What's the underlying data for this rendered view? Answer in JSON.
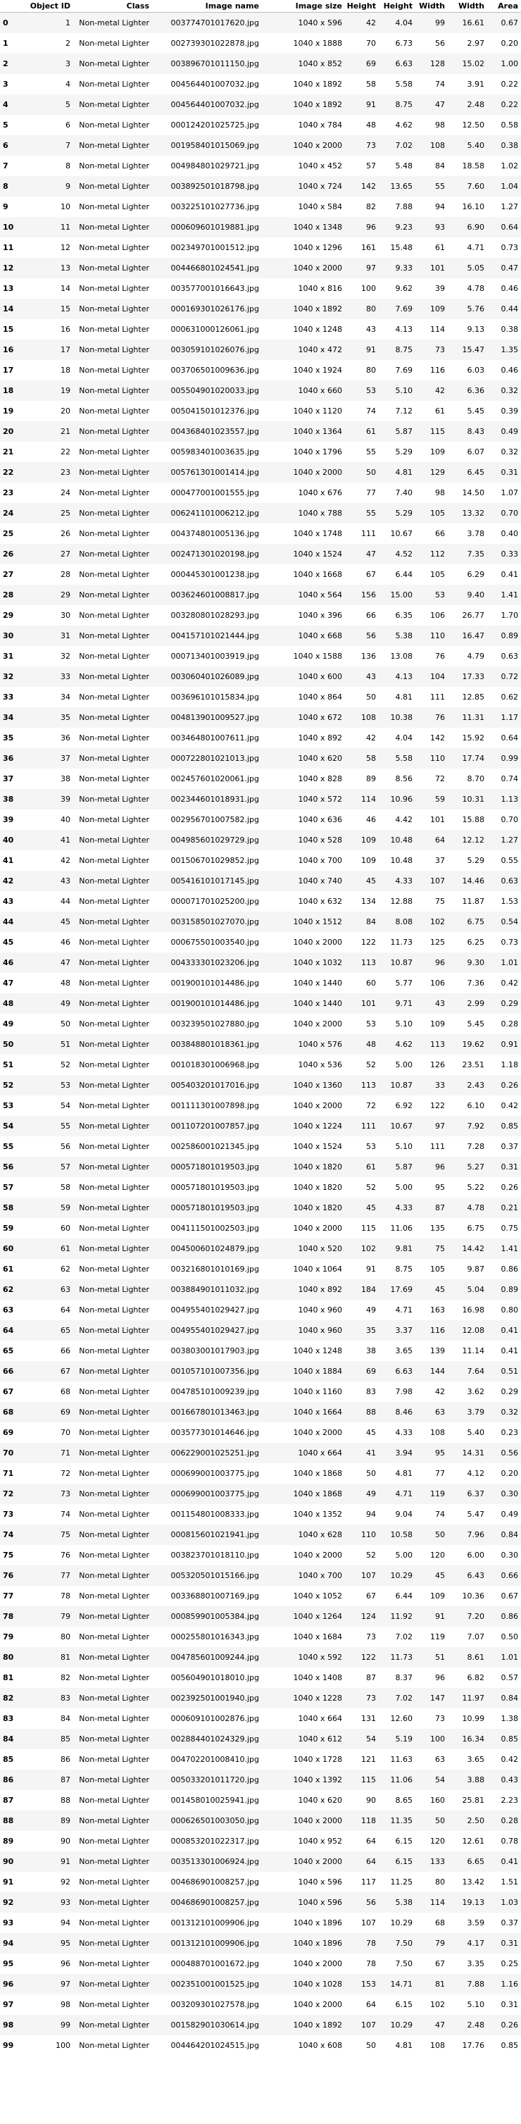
{
  "columns": [
    "Object ID",
    "Class",
    "Image name",
    "Image size",
    "Height",
    "Height",
    "Width",
    "Width",
    "Area"
  ],
  "rows": [
    [
      "0",
      "1",
      "Non-metal Lighter",
      "003774701017620.jpg",
      "1040 x 596",
      "42",
      "4.04",
      "99",
      "16.61",
      "0.67"
    ],
    [
      "1",
      "2",
      "Non-metal Lighter",
      "002739301022878.jpg",
      "1040 x 1888",
      "70",
      "6.73",
      "56",
      "2.97",
      "0.20"
    ],
    [
      "2",
      "3",
      "Non-metal Lighter",
      "003896701011150.jpg",
      "1040 x 852",
      "69",
      "6.63",
      "128",
      "15.02",
      "1.00"
    ],
    [
      "3",
      "4",
      "Non-metal Lighter",
      "004564401007032.jpg",
      "1040 x 1892",
      "58",
      "5.58",
      "74",
      "3.91",
      "0.22"
    ],
    [
      "4",
      "5",
      "Non-metal Lighter",
      "004564401007032.jpg",
      "1040 x 1892",
      "91",
      "8.75",
      "47",
      "2.48",
      "0.22"
    ],
    [
      "5",
      "6",
      "Non-metal Lighter",
      "000124201025725.jpg",
      "1040 x 784",
      "48",
      "4.62",
      "98",
      "12.50",
      "0.58"
    ],
    [
      "6",
      "7",
      "Non-metal Lighter",
      "001958401015069.jpg",
      "1040 x 2000",
      "73",
      "7.02",
      "108",
      "5.40",
      "0.38"
    ],
    [
      "7",
      "8",
      "Non-metal Lighter",
      "004984801029721.jpg",
      "1040 x 452",
      "57",
      "5.48",
      "84",
      "18.58",
      "1.02"
    ],
    [
      "8",
      "9",
      "Non-metal Lighter",
      "003892501018798.jpg",
      "1040 x 724",
      "142",
      "13.65",
      "55",
      "7.60",
      "1.04"
    ],
    [
      "9",
      "10",
      "Non-metal Lighter",
      "003225101027736.jpg",
      "1040 x 584",
      "82",
      "7.88",
      "94",
      "16.10",
      "1.27"
    ],
    [
      "10",
      "11",
      "Non-metal Lighter",
      "000609601019881.jpg",
      "1040 x 1348",
      "96",
      "9.23",
      "93",
      "6.90",
      "0.64"
    ],
    [
      "11",
      "12",
      "Non-metal Lighter",
      "002349701001512.jpg",
      "1040 x 1296",
      "161",
      "15.48",
      "61",
      "4.71",
      "0.73"
    ],
    [
      "12",
      "13",
      "Non-metal Lighter",
      "004466801024541.jpg",
      "1040 x 2000",
      "97",
      "9.33",
      "101",
      "5.05",
      "0.47"
    ],
    [
      "13",
      "14",
      "Non-metal Lighter",
      "003577001016643.jpg",
      "1040 x 816",
      "100",
      "9.62",
      "39",
      "4.78",
      "0.46"
    ],
    [
      "14",
      "15",
      "Non-metal Lighter",
      "000169301026176.jpg",
      "1040 x 1892",
      "80",
      "7.69",
      "109",
      "5.76",
      "0.44"
    ],
    [
      "15",
      "16",
      "Non-metal Lighter",
      "000631000126061.jpg",
      "1040 x 1248",
      "43",
      "4.13",
      "114",
      "9.13",
      "0.38"
    ],
    [
      "16",
      "17",
      "Non-metal Lighter",
      "003059101026076.jpg",
      "1040 x 472",
      "91",
      "8.75",
      "73",
      "15.47",
      "1.35"
    ],
    [
      "17",
      "18",
      "Non-metal Lighter",
      "003706501009636.jpg",
      "1040 x 1924",
      "80",
      "7.69",
      "116",
      "6.03",
      "0.46"
    ],
    [
      "18",
      "19",
      "Non-metal Lighter",
      "005504901020033.jpg",
      "1040 x 660",
      "53",
      "5.10",
      "42",
      "6.36",
      "0.32"
    ],
    [
      "19",
      "20",
      "Non-metal Lighter",
      "005041501012376.jpg",
      "1040 x 1120",
      "74",
      "7.12",
      "61",
      "5.45",
      "0.39"
    ],
    [
      "20",
      "21",
      "Non-metal Lighter",
      "004368401023557.jpg",
      "1040 x 1364",
      "61",
      "5.87",
      "115",
      "8.43",
      "0.49"
    ],
    [
      "21",
      "22",
      "Non-metal Lighter",
      "005983401003635.jpg",
      "1040 x 1796",
      "55",
      "5.29",
      "109",
      "6.07",
      "0.32"
    ],
    [
      "22",
      "23",
      "Non-metal Lighter",
      "005761301001414.jpg",
      "1040 x 2000",
      "50",
      "4.81",
      "129",
      "6.45",
      "0.31"
    ],
    [
      "23",
      "24",
      "Non-metal Lighter",
      "000477001001555.jpg",
      "1040 x 676",
      "77",
      "7.40",
      "98",
      "14.50",
      "1.07"
    ],
    [
      "24",
      "25",
      "Non-metal Lighter",
      "006241101006212.jpg",
      "1040 x 788",
      "55",
      "5.29",
      "105",
      "13.32",
      "0.70"
    ],
    [
      "25",
      "26",
      "Non-metal Lighter",
      "004374801005136.jpg",
      "1040 x 1748",
      "111",
      "10.67",
      "66",
      "3.78",
      "0.40"
    ],
    [
      "26",
      "27",
      "Non-metal Lighter",
      "002471301020198.jpg",
      "1040 x 1524",
      "47",
      "4.52",
      "112",
      "7.35",
      "0.33"
    ],
    [
      "27",
      "28",
      "Non-metal Lighter",
      "000445301001238.jpg",
      "1040 x 1668",
      "67",
      "6.44",
      "105",
      "6.29",
      "0.41"
    ],
    [
      "28",
      "29",
      "Non-metal Lighter",
      "003624601008817.jpg",
      "1040 x 564",
      "156",
      "15.00",
      "53",
      "9.40",
      "1.41"
    ],
    [
      "29",
      "30",
      "Non-metal Lighter",
      "003280801028293.jpg",
      "1040 x 396",
      "66",
      "6.35",
      "106",
      "26.77",
      "1.70"
    ],
    [
      "30",
      "31",
      "Non-metal Lighter",
      "004157101021444.jpg",
      "1040 x 668",
      "56",
      "5.38",
      "110",
      "16.47",
      "0.89"
    ],
    [
      "31",
      "32",
      "Non-metal Lighter",
      "000713401003919.jpg",
      "1040 x 1588",
      "136",
      "13.08",
      "76",
      "4.79",
      "0.63"
    ],
    [
      "32",
      "33",
      "Non-metal Lighter",
      "003060401026089.jpg",
      "1040 x 600",
      "43",
      "4.13",
      "104",
      "17.33",
      "0.72"
    ],
    [
      "33",
      "34",
      "Non-metal Lighter",
      "003696101015834.jpg",
      "1040 x 864",
      "50",
      "4.81",
      "111",
      "12.85",
      "0.62"
    ],
    [
      "34",
      "35",
      "Non-metal Lighter",
      "004813901009527.jpg",
      "1040 x 672",
      "108",
      "10.38",
      "76",
      "11.31",
      "1.17"
    ],
    [
      "35",
      "36",
      "Non-metal Lighter",
      "003464801007611.jpg",
      "1040 x 892",
      "42",
      "4.04",
      "142",
      "15.92",
      "0.64"
    ],
    [
      "36",
      "37",
      "Non-metal Lighter",
      "000722801021013.jpg",
      "1040 x 620",
      "58",
      "5.58",
      "110",
      "17.74",
      "0.99"
    ],
    [
      "37",
      "38",
      "Non-metal Lighter",
      "002457601020061.jpg",
      "1040 x 828",
      "89",
      "8.56",
      "72",
      "8.70",
      "0.74"
    ],
    [
      "38",
      "39",
      "Non-metal Lighter",
      "002344601018931.jpg",
      "1040 x 572",
      "114",
      "10.96",
      "59",
      "10.31",
      "1.13"
    ],
    [
      "39",
      "40",
      "Non-metal Lighter",
      "002956701007582.jpg",
      "1040 x 636",
      "46",
      "4.42",
      "101",
      "15.88",
      "0.70"
    ],
    [
      "40",
      "41",
      "Non-metal Lighter",
      "004985601029729.jpg",
      "1040 x 528",
      "109",
      "10.48",
      "64",
      "12.12",
      "1.27"
    ],
    [
      "41",
      "42",
      "Non-metal Lighter",
      "001506701029852.jpg",
      "1040 x 700",
      "109",
      "10.48",
      "37",
      "5.29",
      "0.55"
    ],
    [
      "42",
      "43",
      "Non-metal Lighter",
      "005416101017145.jpg",
      "1040 x 740",
      "45",
      "4.33",
      "107",
      "14.46",
      "0.63"
    ],
    [
      "43",
      "44",
      "Non-metal Lighter",
      "000071701025200.jpg",
      "1040 x 632",
      "134",
      "12.88",
      "75",
      "11.87",
      "1.53"
    ],
    [
      "44",
      "45",
      "Non-metal Lighter",
      "003158501027070.jpg",
      "1040 x 1512",
      "84",
      "8.08",
      "102",
      "6.75",
      "0.54"
    ],
    [
      "45",
      "46",
      "Non-metal Lighter",
      "000675501003540.jpg",
      "1040 x 2000",
      "122",
      "11.73",
      "125",
      "6.25",
      "0.73"
    ],
    [
      "46",
      "47",
      "Non-metal Lighter",
      "004333301023206.jpg",
      "1040 x 1032",
      "113",
      "10.87",
      "96",
      "9.30",
      "1.01"
    ],
    [
      "47",
      "48",
      "Non-metal Lighter",
      "001900101014486.jpg",
      "1040 x 1440",
      "60",
      "5.77",
      "106",
      "7.36",
      "0.42"
    ],
    [
      "48",
      "49",
      "Non-metal Lighter",
      "001900101014486.jpg",
      "1040 x 1440",
      "101",
      "9.71",
      "43",
      "2.99",
      "0.29"
    ],
    [
      "49",
      "50",
      "Non-metal Lighter",
      "003239501027880.jpg",
      "1040 x 2000",
      "53",
      "5.10",
      "109",
      "5.45",
      "0.28"
    ],
    [
      "50",
      "51",
      "Non-metal Lighter",
      "003848801018361.jpg",
      "1040 x 576",
      "48",
      "4.62",
      "113",
      "19.62",
      "0.91"
    ],
    [
      "51",
      "52",
      "Non-metal Lighter",
      "001018301006968.jpg",
      "1040 x 536",
      "52",
      "5.00",
      "126",
      "23.51",
      "1.18"
    ],
    [
      "52",
      "53",
      "Non-metal Lighter",
      "005403201017016.jpg",
      "1040 x 1360",
      "113",
      "10.87",
      "33",
      "2.43",
      "0.26"
    ],
    [
      "53",
      "54",
      "Non-metal Lighter",
      "001111301007898.jpg",
      "1040 x 2000",
      "72",
      "6.92",
      "122",
      "6.10",
      "0.42"
    ],
    [
      "54",
      "55",
      "Non-metal Lighter",
      "001107201007857.jpg",
      "1040 x 1224",
      "111",
      "10.67",
      "97",
      "7.92",
      "0.85"
    ],
    [
      "55",
      "56",
      "Non-metal Lighter",
      "002586001021345.jpg",
      "1040 x 1524",
      "53",
      "5.10",
      "111",
      "7.28",
      "0.37"
    ],
    [
      "56",
      "57",
      "Non-metal Lighter",
      "000571801019503.jpg",
      "1040 x 1820",
      "61",
      "5.87",
      "96",
      "5.27",
      "0.31"
    ],
    [
      "57",
      "58",
      "Non-metal Lighter",
      "000571801019503.jpg",
      "1040 x 1820",
      "52",
      "5.00",
      "95",
      "5.22",
      "0.26"
    ],
    [
      "58",
      "59",
      "Non-metal Lighter",
      "000571801019503.jpg",
      "1040 x 1820",
      "45",
      "4.33",
      "87",
      "4.78",
      "0.21"
    ],
    [
      "59",
      "60",
      "Non-metal Lighter",
      "004111501002503.jpg",
      "1040 x 2000",
      "115",
      "11.06",
      "135",
      "6.75",
      "0.75"
    ],
    [
      "60",
      "61",
      "Non-metal Lighter",
      "004500601024879.jpg",
      "1040 x 520",
      "102",
      "9.81",
      "75",
      "14.42",
      "1.41"
    ],
    [
      "61",
      "62",
      "Non-metal Lighter",
      "003216801010169.jpg",
      "1040 x 1064",
      "91",
      "8.75",
      "105",
      "9.87",
      "0.86"
    ],
    [
      "62",
      "63",
      "Non-metal Lighter",
      "003884901011032.jpg",
      "1040 x 892",
      "184",
      "17.69",
      "45",
      "5.04",
      "0.89"
    ],
    [
      "63",
      "64",
      "Non-metal Lighter",
      "004955401029427.jpg",
      "1040 x 960",
      "49",
      "4.71",
      "163",
      "16.98",
      "0.80"
    ],
    [
      "64",
      "65",
      "Non-metal Lighter",
      "004955401029427.jpg",
      "1040 x 960",
      "35",
      "3.37",
      "116",
      "12.08",
      "0.41"
    ],
    [
      "65",
      "66",
      "Non-metal Lighter",
      "003803001017903.jpg",
      "1040 x 1248",
      "38",
      "3.65",
      "139",
      "11.14",
      "0.41"
    ],
    [
      "66",
      "67",
      "Non-metal Lighter",
      "001057101007356.jpg",
      "1040 x 1884",
      "69",
      "6.63",
      "144",
      "7.64",
      "0.51"
    ],
    [
      "67",
      "68",
      "Non-metal Lighter",
      "004785101009239.jpg",
      "1040 x 1160",
      "83",
      "7.98",
      "42",
      "3.62",
      "0.29"
    ],
    [
      "68",
      "69",
      "Non-metal Lighter",
      "001667801013463.jpg",
      "1040 x 1664",
      "88",
      "8.46",
      "63",
      "3.79",
      "0.32"
    ],
    [
      "69",
      "70",
      "Non-metal Lighter",
      "003577301014646.jpg",
      "1040 x 2000",
      "45",
      "4.33",
      "108",
      "5.40",
      "0.23"
    ],
    [
      "70",
      "71",
      "Non-metal Lighter",
      "006229001025251.jpg",
      "1040 x 664",
      "41",
      "3.94",
      "95",
      "14.31",
      "0.56"
    ],
    [
      "71",
      "72",
      "Non-metal Lighter",
      "000699001003775.jpg",
      "1040 x 1868",
      "50",
      "4.81",
      "77",
      "4.12",
      "0.20"
    ],
    [
      "72",
      "73",
      "Non-metal Lighter",
      "000699001003775.jpg",
      "1040 x 1868",
      "49",
      "4.71",
      "119",
      "6.37",
      "0.30"
    ],
    [
      "73",
      "74",
      "Non-metal Lighter",
      "001154801008333.jpg",
      "1040 x 1352",
      "94",
      "9.04",
      "74",
      "5.47",
      "0.49"
    ],
    [
      "74",
      "75",
      "Non-metal Lighter",
      "000815601021941.jpg",
      "1040 x 628",
      "110",
      "10.58",
      "50",
      "7.96",
      "0.84"
    ],
    [
      "75",
      "76",
      "Non-metal Lighter",
      "003823701018110.jpg",
      "1040 x 2000",
      "52",
      "5.00",
      "120",
      "6.00",
      "0.30"
    ],
    [
      "76",
      "77",
      "Non-metal Lighter",
      "005320501015166.jpg",
      "1040 x 700",
      "107",
      "10.29",
      "45",
      "6.43",
      "0.66"
    ],
    [
      "77",
      "78",
      "Non-metal Lighter",
      "003368801007169.jpg",
      "1040 x 1052",
      "67",
      "6.44",
      "109",
      "10.36",
      "0.67"
    ],
    [
      "78",
      "79",
      "Non-metal Lighter",
      "000859901005384.jpg",
      "1040 x 1264",
      "124",
      "11.92",
      "91",
      "7.20",
      "0.86"
    ],
    [
      "79",
      "80",
      "Non-metal Lighter",
      "000255801016343.jpg",
      "1040 x 1684",
      "73",
      "7.02",
      "119",
      "7.07",
      "0.50"
    ],
    [
      "80",
      "81",
      "Non-metal Lighter",
      "004785601009244.jpg",
      "1040 x 592",
      "122",
      "11.73",
      "51",
      "8.61",
      "1.01"
    ],
    [
      "81",
      "82",
      "Non-metal Lighter",
      "005604901018010.jpg",
      "1040 x 1408",
      "87",
      "8.37",
      "96",
      "6.82",
      "0.57"
    ],
    [
      "82",
      "83",
      "Non-metal Lighter",
      "002392501001940.jpg",
      "1040 x 1228",
      "73",
      "7.02",
      "147",
      "11.97",
      "0.84"
    ],
    [
      "83",
      "84",
      "Non-metal Lighter",
      "000609101002876.jpg",
      "1040 x 664",
      "131",
      "12.60",
      "73",
      "10.99",
      "1.38"
    ],
    [
      "84",
      "85",
      "Non-metal Lighter",
      "002884401024329.jpg",
      "1040 x 612",
      "54",
      "5.19",
      "100",
      "16.34",
      "0.85"
    ],
    [
      "85",
      "86",
      "Non-metal Lighter",
      "004702201008410.jpg",
      "1040 x 1728",
      "121",
      "11.63",
      "63",
      "3.65",
      "0.42"
    ],
    [
      "86",
      "87",
      "Non-metal Lighter",
      "005033201011720.jpg",
      "1040 x 1392",
      "115",
      "11.06",
      "54",
      "3.88",
      "0.43"
    ],
    [
      "87",
      "88",
      "Non-metal Lighter",
      "001458010025941.jpg",
      "1040 x 620",
      "90",
      "8.65",
      "160",
      "25.81",
      "2.23"
    ],
    [
      "88",
      "89",
      "Non-metal Lighter",
      "000626501003050.jpg",
      "1040 x 2000",
      "118",
      "11.35",
      "50",
      "2.50",
      "0.28"
    ],
    [
      "89",
      "90",
      "Non-metal Lighter",
      "000853201022317.jpg",
      "1040 x 952",
      "64",
      "6.15",
      "120",
      "12.61",
      "0.78"
    ],
    [
      "90",
      "91",
      "Non-metal Lighter",
      "003513301006924.jpg",
      "1040 x 2000",
      "64",
      "6.15",
      "133",
      "6.65",
      "0.41"
    ],
    [
      "91",
      "92",
      "Non-metal Lighter",
      "004686901008257.jpg",
      "1040 x 596",
      "117",
      "11.25",
      "80",
      "13.42",
      "1.51"
    ],
    [
      "92",
      "93",
      "Non-metal Lighter",
      "004686901008257.jpg",
      "1040 x 596",
      "56",
      "5.38",
      "114",
      "19.13",
      "1.03"
    ],
    [
      "93",
      "94",
      "Non-metal Lighter",
      "001312101009906.jpg",
      "1040 x 1896",
      "107",
      "10.29",
      "68",
      "3.59",
      "0.37"
    ],
    [
      "94",
      "95",
      "Non-metal Lighter",
      "001312101009906.jpg",
      "1040 x 1896",
      "78",
      "7.50",
      "79",
      "4.17",
      "0.31"
    ],
    [
      "95",
      "96",
      "Non-metal Lighter",
      "000488701001672.jpg",
      "1040 x 2000",
      "78",
      "7.50",
      "67",
      "3.35",
      "0.25"
    ],
    [
      "96",
      "97",
      "Non-metal Lighter",
      "002351001001525.jpg",
      "1040 x 1028",
      "153",
      "14.71",
      "81",
      "7.88",
      "1.16"
    ],
    [
      "97",
      "98",
      "Non-metal Lighter",
      "003209301027578.jpg",
      "1040 x 2000",
      "64",
      "6.15",
      "102",
      "5.10",
      "0.31"
    ],
    [
      "98",
      "99",
      "Non-metal Lighter",
      "001582901030614.jpg",
      "1040 x 1892",
      "107",
      "10.29",
      "47",
      "2.48",
      "0.26"
    ],
    [
      "99",
      "100",
      "Non-metal Lighter",
      "004464201024515.jpg",
      "1040 x 608",
      "50",
      "4.81",
      "108",
      "17.76",
      "0.85"
    ]
  ]
}
